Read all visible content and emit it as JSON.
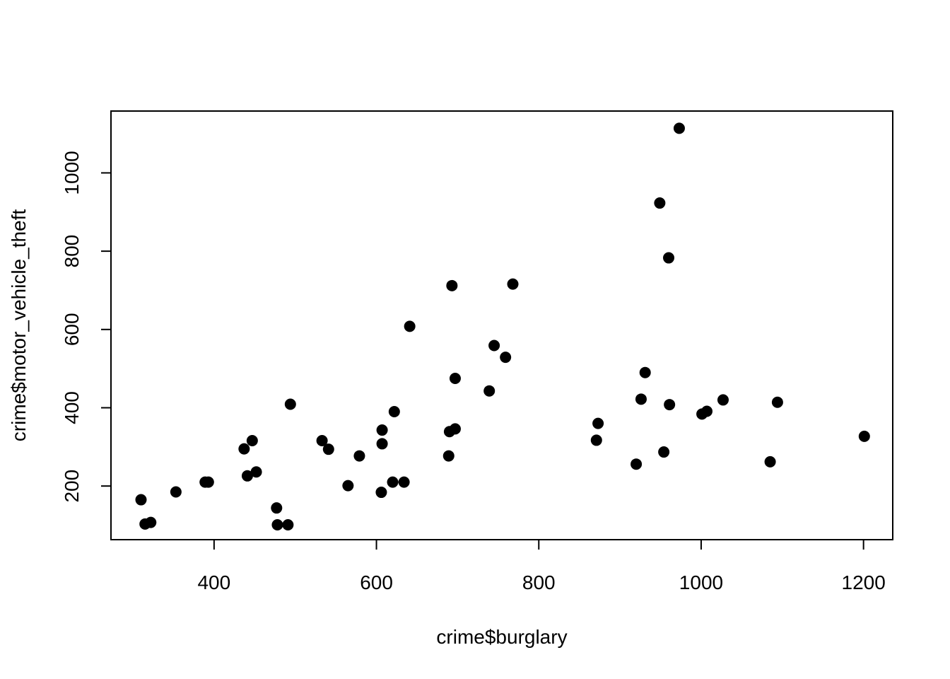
{
  "chart_data": {
    "type": "scatter",
    "title": "",
    "xlabel": "crime$burglary",
    "ylabel": "crime$motor_vehicle_theft",
    "xlim": [
      273,
      1236
    ],
    "ylim": [
      63,
      1158
    ],
    "x_ticks": [
      400,
      600,
      800,
      1000,
      1200
    ],
    "y_ticks": [
      200,
      400,
      600,
      800,
      1000
    ],
    "grid": false,
    "legend": "none",
    "point_color": "#000000",
    "points": [
      {
        "x": 310,
        "y": 165
      },
      {
        "x": 315,
        "y": 103
      },
      {
        "x": 322,
        "y": 107
      },
      {
        "x": 353,
        "y": 185
      },
      {
        "x": 389,
        "y": 210
      },
      {
        "x": 393,
        "y": 210
      },
      {
        "x": 437,
        "y": 295
      },
      {
        "x": 441,
        "y": 226
      },
      {
        "x": 447,
        "y": 316
      },
      {
        "x": 452,
        "y": 236
      },
      {
        "x": 477,
        "y": 144
      },
      {
        "x": 478,
        "y": 101
      },
      {
        "x": 491,
        "y": 101
      },
      {
        "x": 494,
        "y": 409
      },
      {
        "x": 533,
        "y": 316
      },
      {
        "x": 541,
        "y": 294
      },
      {
        "x": 565,
        "y": 201
      },
      {
        "x": 579,
        "y": 277
      },
      {
        "x": 606,
        "y": 184
      },
      {
        "x": 607,
        "y": 343
      },
      {
        "x": 607,
        "y": 308
      },
      {
        "x": 620,
        "y": 210
      },
      {
        "x": 622,
        "y": 390
      },
      {
        "x": 634,
        "y": 210
      },
      {
        "x": 641,
        "y": 608
      },
      {
        "x": 689,
        "y": 277
      },
      {
        "x": 690,
        "y": 339
      },
      {
        "x": 693,
        "y": 712
      },
      {
        "x": 697,
        "y": 346
      },
      {
        "x": 697,
        "y": 475
      },
      {
        "x": 739,
        "y": 443
      },
      {
        "x": 745,
        "y": 559
      },
      {
        "x": 759,
        "y": 529
      },
      {
        "x": 768,
        "y": 716
      },
      {
        "x": 871,
        "y": 317
      },
      {
        "x": 873,
        "y": 360
      },
      {
        "x": 920,
        "y": 256
      },
      {
        "x": 926,
        "y": 422
      },
      {
        "x": 931,
        "y": 490
      },
      {
        "x": 949,
        "y": 923
      },
      {
        "x": 954,
        "y": 287
      },
      {
        "x": 960,
        "y": 783
      },
      {
        "x": 961,
        "y": 408
      },
      {
        "x": 973,
        "y": 1114
      },
      {
        "x": 1001,
        "y": 384
      },
      {
        "x": 1007,
        "y": 391
      },
      {
        "x": 1027,
        "y": 420
      },
      {
        "x": 1085,
        "y": 262
      },
      {
        "x": 1094,
        "y": 414
      },
      {
        "x": 1201,
        "y": 327
      }
    ]
  }
}
